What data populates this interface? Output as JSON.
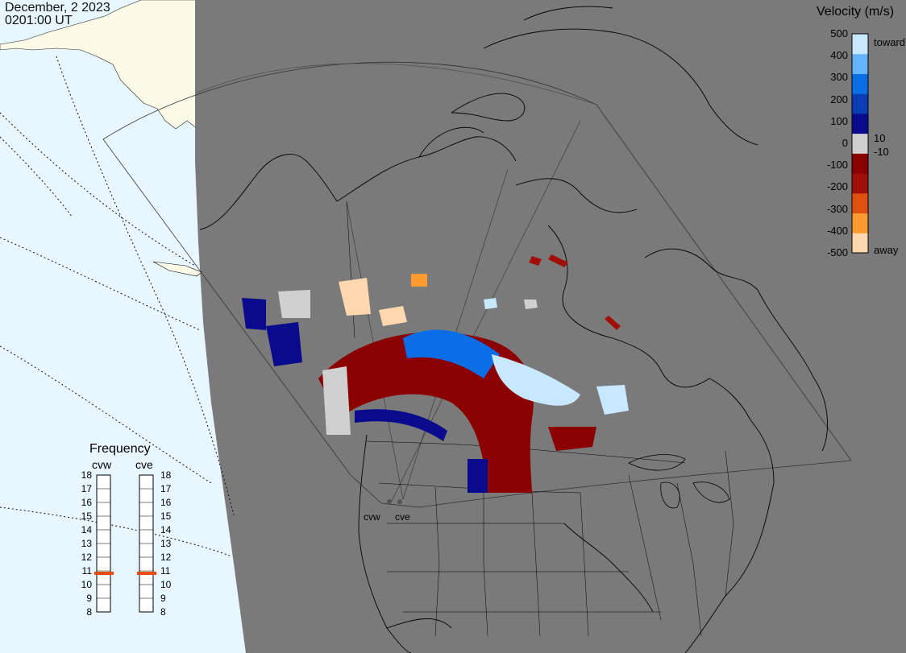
{
  "header": {
    "date": "December, 2 2023",
    "time": "0201:00 UT"
  },
  "velocity_scale": {
    "title": "Velocity (m/s)",
    "ticks": [
      "500",
      "400",
      "300",
      "200",
      "100",
      "0",
      "-100",
      "-200",
      "-300",
      "-400",
      "-500"
    ],
    "toward_label": "toward",
    "away_label": "away",
    "pos_threshold": "10",
    "neg_threshold": "-10",
    "colors": [
      "#ffd8b0",
      "#ff9a30",
      "#e05010",
      "#a01008",
      "#8b0000",
      "#d0d0d0",
      "#0a0a8c",
      "#0a3cb4",
      "#0a6fe6",
      "#64b4ff",
      "#c8e8ff"
    ]
  },
  "frequency": {
    "title": "Frequency",
    "radars": [
      "cvw",
      "cve"
    ],
    "scale": [
      "18",
      "17",
      "16",
      "15",
      "14",
      "13",
      "12",
      "11",
      "10",
      "9",
      "8"
    ],
    "current_mhz": [
      11,
      11
    ]
  },
  "sites": [
    "cvw",
    "cve"
  ],
  "map_colors": {
    "ocean": "#e8f6ff",
    "land": "#fcfbe8",
    "night": "#7a7a7a",
    "coast": "#000000"
  }
}
